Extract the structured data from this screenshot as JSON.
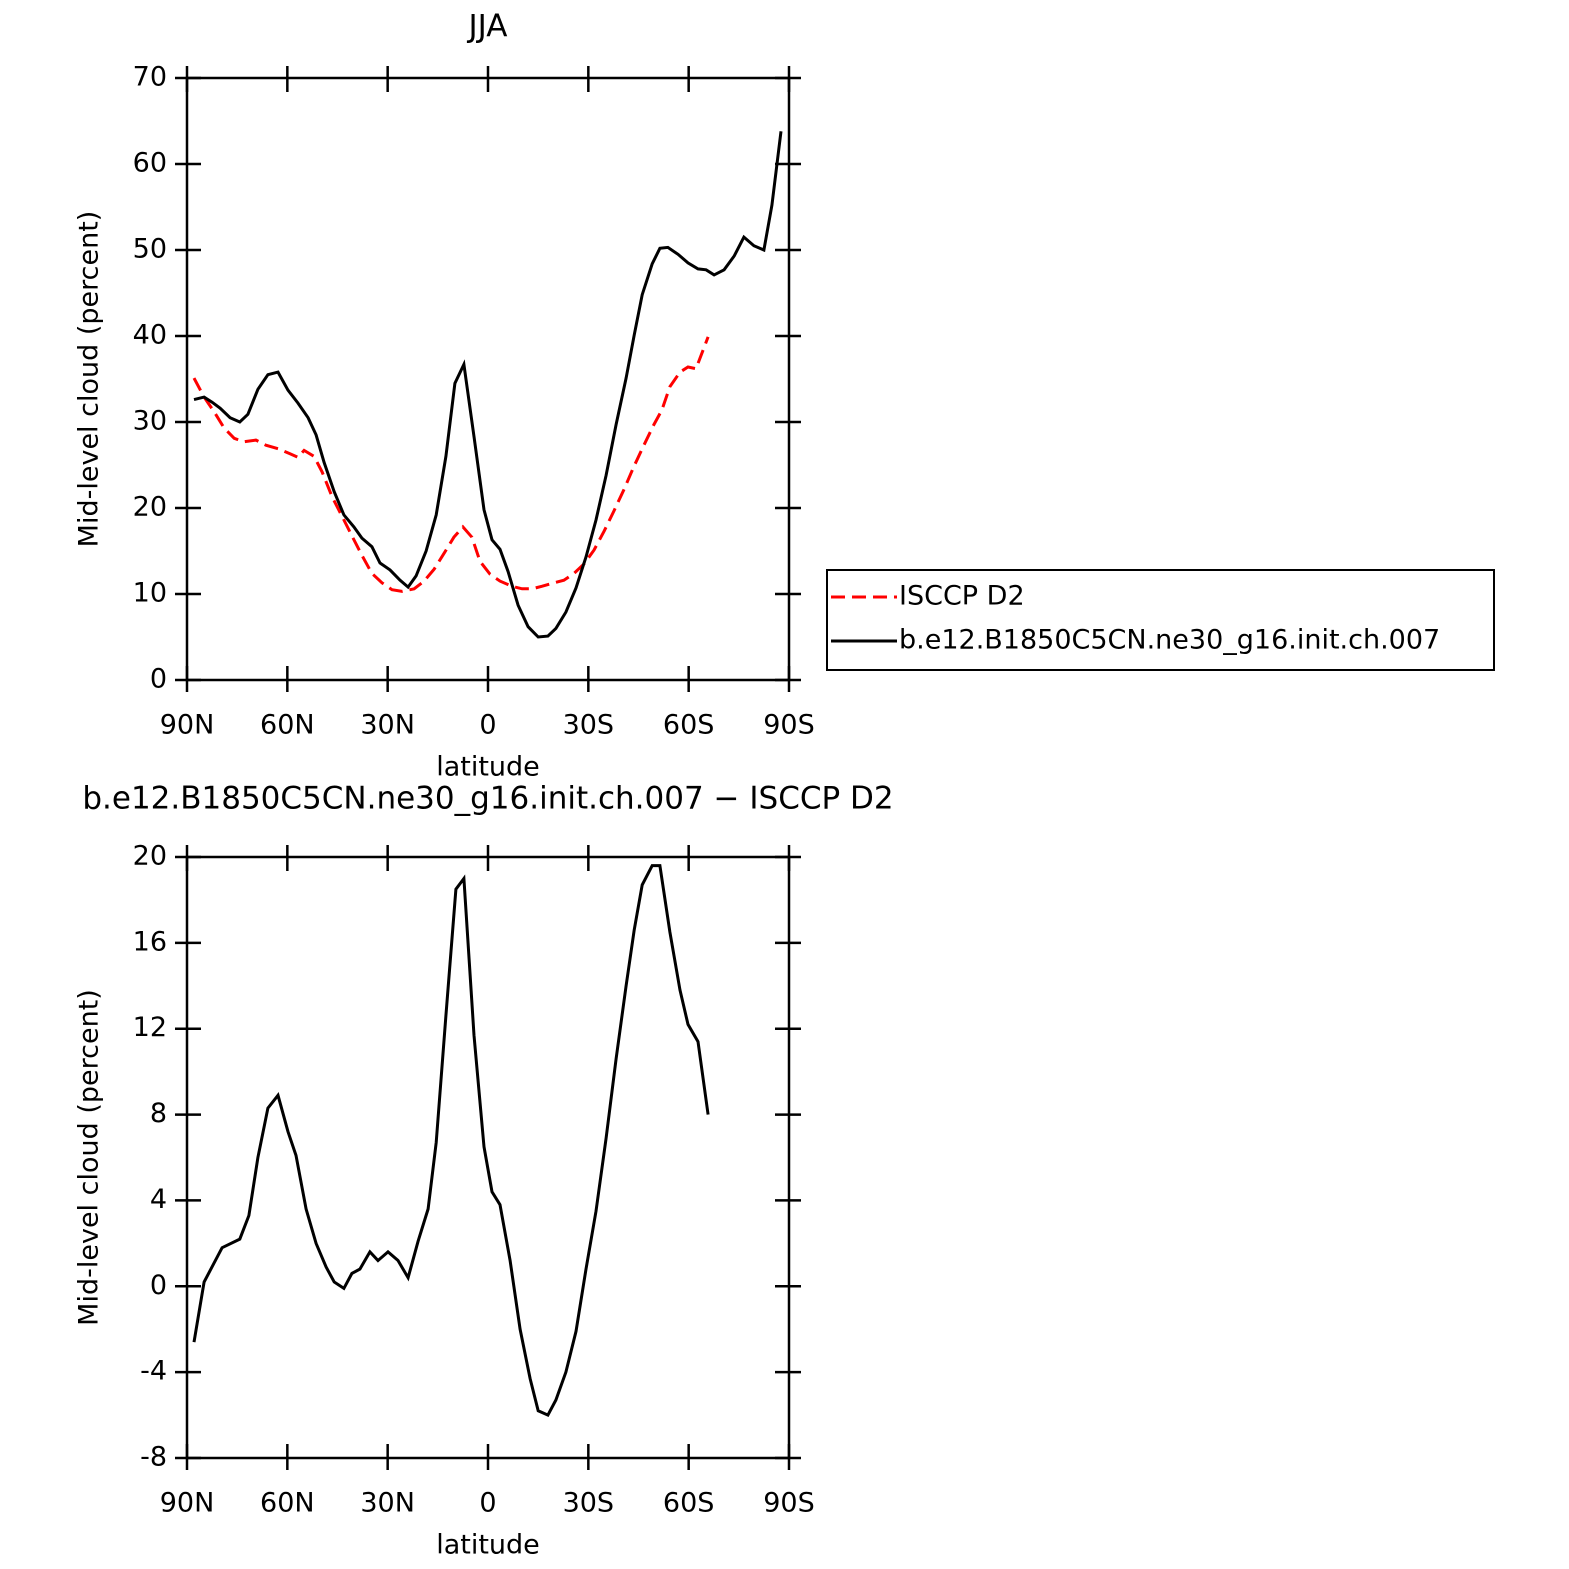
{
  "chart_data": [
    {
      "type": "line",
      "title": "JJA",
      "xlabel": "latitude",
      "ylabel": "Mid-level cloud (percent)",
      "xlim": [
        90,
        -90
      ],
      "xticks": [
        {
          "value": 90,
          "label": "90N"
        },
        {
          "value": 60,
          "label": "60N"
        },
        {
          "value": 30,
          "label": "30N"
        },
        0,
        {
          "value": -30,
          "label": "30S"
        },
        {
          "value": -60,
          "label": "60S"
        },
        {
          "value": -90,
          "label": "90S"
        }
      ],
      "ylim": [
        0,
        70
      ],
      "yticks": [
        0,
        10,
        20,
        30,
        40,
        50,
        60,
        70
      ],
      "legend": "right",
      "series": [
        {
          "name": "ISCCP D2",
          "color": "#ff0000",
          "line_style": "dashed",
          "x": [
            87.9,
            84.9,
            81.9,
            78.9,
            75.9,
            73.0,
            69.4,
            66.4,
            62.8,
            59.2,
            56.8,
            55.0,
            52.0,
            49.6,
            46.6,
            43.6,
            40.6,
            37.7,
            34.7,
            31.7,
            28.7,
            25.7,
            22.1,
            19.1,
            16.1,
            13.2,
            10.2,
            7.5,
            4.8,
            2.4,
            -0.6,
            -3.6,
            -7.2,
            -10.2,
            -13.2,
            -16.1,
            -19.7,
            -22.7,
            -25.7,
            -28.7,
            -31.7,
            -34.7,
            -37.7,
            -40.6,
            -43.6,
            -46.6,
            -49.6,
            -52.0,
            -54.4,
            -57.4,
            -59.8,
            -62.2,
            -65.8
          ],
          "values": [
            35.1,
            32.9,
            31.2,
            29.3,
            28.1,
            27.7,
            27.9,
            27.3,
            26.9,
            26.3,
            25.9,
            26.7,
            26.0,
            24.2,
            21.3,
            19.0,
            16.7,
            14.5,
            12.4,
            11.3,
            10.5,
            10.3,
            10.6,
            11.5,
            12.9,
            14.7,
            16.6,
            17.8,
            16.6,
            13.8,
            12.3,
            11.5,
            10.9,
            10.6,
            10.6,
            10.9,
            11.3,
            11.6,
            12.4,
            13.5,
            15.1,
            17.3,
            19.7,
            22.1,
            24.8,
            27.3,
            29.7,
            31.4,
            34.1,
            35.8,
            36.4,
            36.2,
            39.9
          ]
        },
        {
          "name": "b.e12.B1850C5CN.ne30_g16.init.ch.007",
          "color": "#000000",
          "line_style": "solid",
          "x": [
            87.9,
            84.9,
            82.5,
            80.1,
            77.1,
            74.2,
            71.8,
            68.8,
            65.8,
            62.8,
            59.8,
            56.8,
            53.8,
            51.4,
            49.0,
            46.0,
            43.1,
            40.1,
            37.7,
            34.7,
            32.3,
            29.3,
            26.3,
            23.9,
            21.5,
            18.5,
            15.5,
            12.6,
            9.9,
            7.2,
            4.2,
            1.2,
            -1.2,
            -3.6,
            -6.0,
            -9.0,
            -12.0,
            -15.0,
            -17.9,
            -20.3,
            -23.3,
            -26.3,
            -29.3,
            -32.3,
            -35.3,
            -38.3,
            -41.3,
            -43.7,
            -46.1,
            -49.1,
            -51.4,
            -53.8,
            -56.8,
            -59.8,
            -62.8,
            -65.2,
            -67.6,
            -70.6,
            -73.6,
            -76.5,
            -79.5,
            -82.5,
            -84.9,
            -87.6
          ],
          "values": [
            32.6,
            32.9,
            32.3,
            31.6,
            30.5,
            30.0,
            30.9,
            33.8,
            35.5,
            35.8,
            33.7,
            32.2,
            30.5,
            28.5,
            25.3,
            21.9,
            19.2,
            17.8,
            16.5,
            15.5,
            13.6,
            12.8,
            11.6,
            10.8,
            12.1,
            15.0,
            19.2,
            26.0,
            34.5,
            36.7,
            28.3,
            19.8,
            16.3,
            15.2,
            12.6,
            8.7,
            6.2,
            5.0,
            5.1,
            6.0,
            7.9,
            10.7,
            14.3,
            18.6,
            23.8,
            29.7,
            35.1,
            40.1,
            44.8,
            48.4,
            50.2,
            50.3,
            49.5,
            48.5,
            47.8,
            47.7,
            47.1,
            47.7,
            49.3,
            51.5,
            50.5,
            50.0,
            55.2,
            63.8
          ]
        }
      ]
    },
    {
      "type": "line",
      "title": "b.e12.B1850C5CN.ne30_g16.init.ch.007 − ISCCP D2",
      "xlabel": "latitude",
      "ylabel": "Mid-level cloud (percent)",
      "xlim": [
        90,
        -90
      ],
      "xticks": [
        {
          "value": 90,
          "label": "90N"
        },
        {
          "value": 60,
          "label": "60N"
        },
        {
          "value": 30,
          "label": "30N"
        },
        0,
        {
          "value": -30,
          "label": "30S"
        },
        {
          "value": -60,
          "label": "60S"
        },
        {
          "value": -90,
          "label": "90S"
        }
      ],
      "ylim": [
        -8,
        20
      ],
      "yticks": [
        -8,
        -4,
        0,
        4,
        8,
        12,
        16,
        20
      ],
      "series": [
        {
          "color": "#000000",
          "line_style": "solid",
          "x": [
            87.9,
            84.9,
            79.5,
            74.2,
            71.5,
            68.8,
            65.8,
            62.8,
            59.8,
            57.4,
            54.4,
            51.4,
            48.4,
            46.0,
            43.1,
            40.7,
            38.3,
            35.3,
            32.9,
            29.9,
            26.9,
            23.9,
            20.9,
            17.9,
            15.5,
            12.6,
            9.6,
            7.2,
            4.2,
            1.2,
            -1.2,
            -3.6,
            -6.6,
            -9.6,
            -12.6,
            -15.0,
            -17.9,
            -20.3,
            -23.3,
            -26.3,
            -29.3,
            -32.3,
            -35.3,
            -38.3,
            -41.3,
            -43.7,
            -46.1,
            -49.1,
            -51.4,
            -54.4,
            -57.4,
            -59.8,
            -62.8,
            -65.8
          ],
          "values": [
            -2.6,
            0.2,
            1.8,
            2.2,
            3.3,
            6.0,
            8.3,
            8.9,
            7.2,
            6.1,
            3.6,
            2.0,
            0.9,
            0.2,
            -0.1,
            0.6,
            0.8,
            1.6,
            1.2,
            1.6,
            1.2,
            0.4,
            2.1,
            3.6,
            6.7,
            12.6,
            18.5,
            19.0,
            11.7,
            6.5,
            4.4,
            3.8,
            1.2,
            -2.0,
            -4.3,
            -5.8,
            -6.0,
            -5.3,
            -4.0,
            -2.1,
            0.8,
            3.5,
            6.9,
            10.6,
            14.0,
            16.6,
            18.7,
            19.6,
            19.6,
            16.5,
            13.8,
            12.2,
            11.4,
            8.0
          ]
        }
      ]
    }
  ]
}
